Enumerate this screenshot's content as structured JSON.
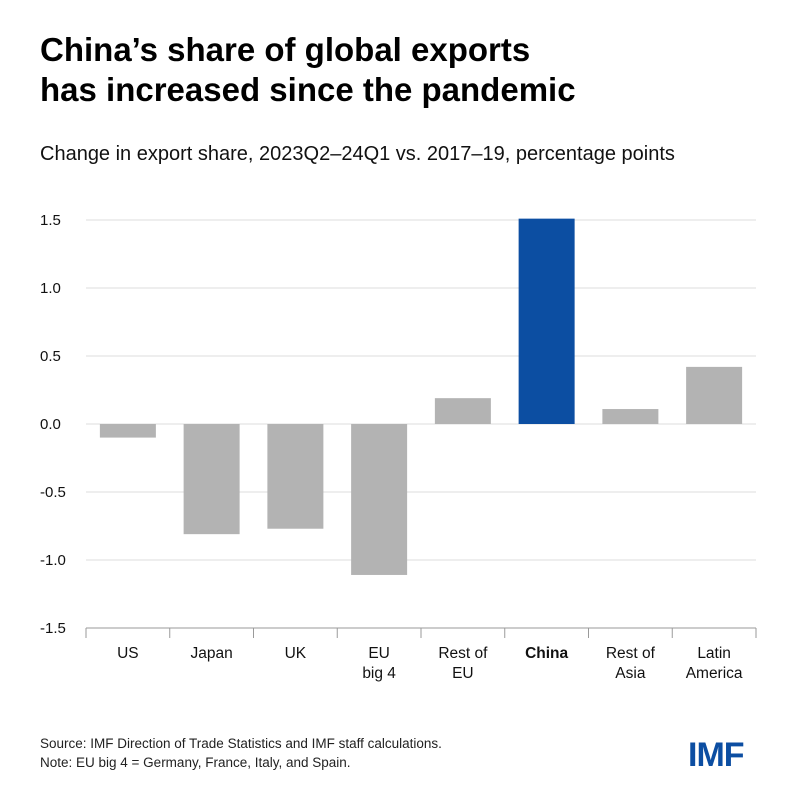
{
  "title_lines": [
    "China’s share of global exports",
    "has increased since the pandemic"
  ],
  "subtitle": "Change in export share, 2023Q2–24Q1 vs. 2017–19, percentage points",
  "footer": {
    "source": "Source: IMF Direction of Trade Statistics and IMF staff calculations.",
    "note": "Note: EU big 4 = Germany, France, Italy, and Spain."
  },
  "logo_text": "IMF",
  "colors": {
    "highlight": "#0c4ea2",
    "bar": "#b3b3b3",
    "grid": "#dcdcdc",
    "axis": "#9a9a9a"
  },
  "chart_data": {
    "type": "bar",
    "categories": [
      [
        "US"
      ],
      [
        "Japan"
      ],
      [
        "UK"
      ],
      [
        "EU",
        "big 4"
      ],
      [
        "Rest of",
        "EU"
      ],
      [
        "China"
      ],
      [
        "Rest of",
        "Asia"
      ],
      [
        "Latin",
        "America"
      ]
    ],
    "values": [
      -0.1,
      -0.81,
      -0.77,
      -1.11,
      0.19,
      1.51,
      0.11,
      0.42
    ],
    "highlight_index": 5,
    "ylim": [
      -1.5,
      1.5
    ],
    "yticks": [
      "-1.5",
      "-1.0",
      "-0.5",
      "0.0",
      "0.5",
      "1.0",
      "1.5"
    ],
    "grid": true
  }
}
